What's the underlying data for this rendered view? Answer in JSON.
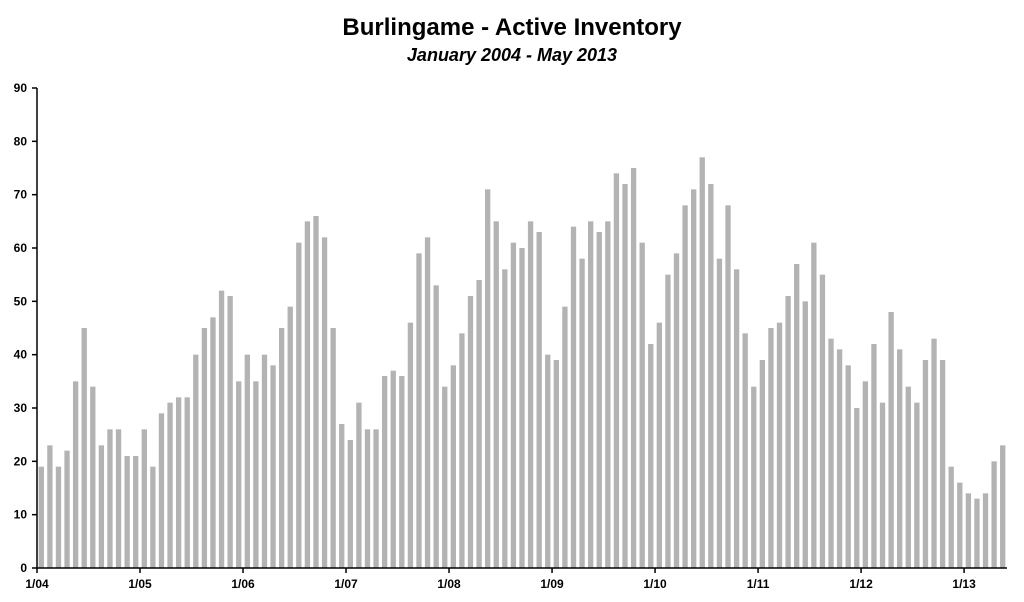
{
  "chart_data": {
    "type": "bar",
    "title": "Burlingame - Active Inventory",
    "subtitle": "January 2004 - May 2013",
    "xlabel": "",
    "ylabel": "",
    "ylim": [
      0,
      90
    ],
    "yticks": [
      0,
      10,
      20,
      30,
      40,
      50,
      60,
      70,
      80,
      90
    ],
    "x_tick_labels": [
      {
        "label": "1/04",
        "index": 0
      },
      {
        "label": "1/05",
        "index": 12
      },
      {
        "label": "1/06",
        "index": 24
      },
      {
        "label": "1/07",
        "index": 36
      },
      {
        "label": "1/08",
        "index": 48
      },
      {
        "label": "1/09",
        "index": 60
      },
      {
        "label": "1/10",
        "index": 72
      },
      {
        "label": "1/11",
        "index": 84
      },
      {
        "label": "1/12",
        "index": 96
      },
      {
        "label": "1/13",
        "index": 108
      }
    ],
    "grid": false,
    "bar_color": "#b3b3b3",
    "values": [
      19,
      23,
      19,
      22,
      35,
      45,
      34,
      23,
      26,
      26,
      21,
      21,
      26,
      19,
      29,
      31,
      32,
      32,
      40,
      45,
      47,
      52,
      51,
      35,
      40,
      35,
      40,
      38,
      45,
      49,
      61,
      65,
      66,
      62,
      45,
      27,
      24,
      31,
      26,
      26,
      36,
      37,
      36,
      46,
      59,
      62,
      53,
      34,
      38,
      44,
      51,
      54,
      71,
      65,
      56,
      61,
      60,
      65,
      63,
      40,
      39,
      49,
      64,
      58,
      65,
      63,
      65,
      74,
      72,
      75,
      61,
      42,
      46,
      55,
      59,
      68,
      71,
      77,
      72,
      58,
      68,
      56,
      44,
      34,
      39,
      45,
      46,
      51,
      57,
      50,
      61,
      55,
      43,
      41,
      38,
      30,
      35,
      42,
      31,
      48,
      41,
      34,
      31,
      39,
      43,
      39,
      19,
      16,
      14,
      13,
      14,
      20,
      23
    ]
  }
}
